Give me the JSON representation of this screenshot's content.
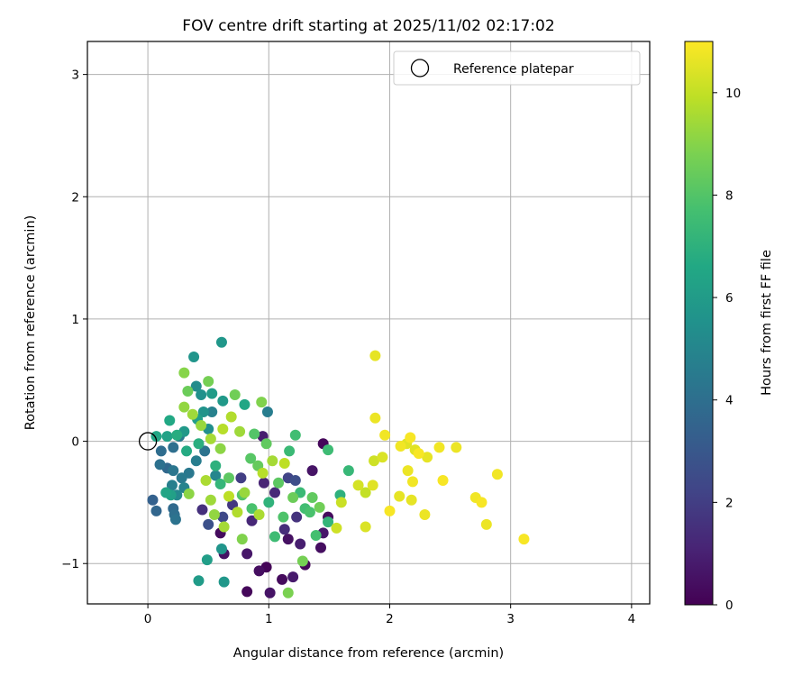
{
  "chart_data": {
    "type": "scatter",
    "title": "FOV centre drift starting at 2025/11/02 02:17:02",
    "xlabel": "Angular distance from reference (arcmin)",
    "ylabel": "Rotation from reference (arcmin)",
    "xlim": [
      -0.5,
      4.15
    ],
    "ylim": [
      -1.33,
      3.27
    ],
    "xticks": [
      0,
      1,
      2,
      3,
      4
    ],
    "yticks": [
      -1,
      0,
      1,
      2,
      3
    ],
    "xtick_labels": [
      "0",
      "1",
      "2",
      "3",
      "4"
    ],
    "ytick_labels": [
      "−1",
      "0",
      "1",
      "2",
      "3"
    ],
    "grid": true,
    "colormap": "viridis",
    "colorbar": {
      "label": "Hours from first FF file",
      "range": [
        0,
        11
      ],
      "ticks": [
        0,
        2,
        4,
        6,
        8,
        10
      ],
      "tick_labels": [
        "0",
        "2",
        "4",
        "6",
        "8",
        "10"
      ]
    },
    "legend": {
      "location": "top-right",
      "entries": [
        {
          "label": "Reference platepar",
          "marker": "open-circle"
        }
      ]
    },
    "reference_point": {
      "x": 0,
      "y": 0
    },
    "series": [
      {
        "name": "FOV centre",
        "points": [
          {
            "x": 0.6,
            "y": -0.75,
            "hours": 0.3
          },
          {
            "x": 0.63,
            "y": -0.92,
            "hours": 0.5
          },
          {
            "x": 0.82,
            "y": -0.92,
            "hours": 0.7
          },
          {
            "x": 0.82,
            "y": -1.23,
            "hours": 0.2
          },
          {
            "x": 0.92,
            "y": -1.06,
            "hours": 0.4
          },
          {
            "x": 0.98,
            "y": -1.03,
            "hours": 0.1
          },
          {
            "x": 1.01,
            "y": -1.24,
            "hours": 0.6
          },
          {
            "x": 1.11,
            "y": -1.13,
            "hours": 0.3
          },
          {
            "x": 1.2,
            "y": -1.11,
            "hours": 0.8
          },
          {
            "x": 1.3,
            "y": -1.01,
            "hours": 0.2
          },
          {
            "x": 1.16,
            "y": -0.8,
            "hours": 0.5
          },
          {
            "x": 1.26,
            "y": -0.84,
            "hours": 0.9
          },
          {
            "x": 1.43,
            "y": -0.87,
            "hours": 0.4
          },
          {
            "x": 1.45,
            "y": -0.75,
            "hours": 0.7
          },
          {
            "x": 1.49,
            "y": -0.62,
            "hours": 0.3
          },
          {
            "x": 1.36,
            "y": -0.24,
            "hours": 0.6
          },
          {
            "x": 1.45,
            "y": -0.02,
            "hours": 0.2
          },
          {
            "x": 0.95,
            "y": 0.04,
            "hours": 0.9
          },
          {
            "x": 0.96,
            "y": -0.34,
            "hours": 1.1
          },
          {
            "x": 1.05,
            "y": -0.42,
            "hours": 1.3
          },
          {
            "x": 0.86,
            "y": -0.65,
            "hours": 1.2
          },
          {
            "x": 1.23,
            "y": -0.62,
            "hours": 1.6
          },
          {
            "x": 1.13,
            "y": -0.72,
            "hours": 1.4
          },
          {
            "x": 0.45,
            "y": -0.56,
            "hours": 1.5
          },
          {
            "x": 0.7,
            "y": -0.52,
            "hours": 1.8
          },
          {
            "x": 0.77,
            "y": -0.3,
            "hours": 2.0
          },
          {
            "x": 1.16,
            "y": -0.3,
            "hours": 2.2
          },
          {
            "x": 0.62,
            "y": -0.62,
            "hours": 2.4
          },
          {
            "x": 0.5,
            "y": -0.68,
            "hours": 2.7
          },
          {
            "x": 1.22,
            "y": -0.32,
            "hours": 2.6
          },
          {
            "x": 0.04,
            "y": -0.48,
            "hours": 3.4
          },
          {
            "x": 0.07,
            "y": -0.57,
            "hours": 3.6
          },
          {
            "x": 0.21,
            "y": -0.55,
            "hours": 3.8
          },
          {
            "x": 0.22,
            "y": -0.6,
            "hours": 4.0
          },
          {
            "x": 0.23,
            "y": -0.64,
            "hours": 4.2
          },
          {
            "x": 0.11,
            "y": -0.08,
            "hours": 3.9
          },
          {
            "x": 0.1,
            "y": -0.19,
            "hours": 4.1
          },
          {
            "x": 0.16,
            "y": -0.22,
            "hours": 3.7
          },
          {
            "x": 0.21,
            "y": -0.24,
            "hours": 4.3
          },
          {
            "x": 0.28,
            "y": -0.3,
            "hours": 4.5
          },
          {
            "x": 0.34,
            "y": -0.26,
            "hours": 4.4
          },
          {
            "x": 0.4,
            "y": -0.16,
            "hours": 4.6
          },
          {
            "x": 0.47,
            "y": -0.08,
            "hours": 4.2
          },
          {
            "x": 0.53,
            "y": 0.24,
            "hours": 4.8
          },
          {
            "x": 0.21,
            "y": -0.05,
            "hours": 4.0
          },
          {
            "x": 0.26,
            "y": 0.04,
            "hours": 4.5
          },
          {
            "x": 0.2,
            "y": -0.36,
            "hours": 4.7
          },
          {
            "x": 0.3,
            "y": -0.38,
            "hours": 4.9
          },
          {
            "x": 0.24,
            "y": -0.44,
            "hours": 5.1
          },
          {
            "x": 0.99,
            "y": 0.24,
            "hours": 4.6
          },
          {
            "x": 0.56,
            "y": -0.28,
            "hours": 5.0
          },
          {
            "x": 0.4,
            "y": 0.45,
            "hours": 5.3
          },
          {
            "x": 0.44,
            "y": 0.38,
            "hours": 5.5
          },
          {
            "x": 0.46,
            "y": 0.24,
            "hours": 5.6
          },
          {
            "x": 0.5,
            "y": 0.1,
            "hours": 5.4
          },
          {
            "x": 0.38,
            "y": 0.69,
            "hours": 5.7
          },
          {
            "x": 0.61,
            "y": 0.81,
            "hours": 5.8
          },
          {
            "x": 0.62,
            "y": 0.33,
            "hours": 5.9
          },
          {
            "x": 0.53,
            "y": 0.39,
            "hours": 6.0
          },
          {
            "x": 0.41,
            "y": 0.18,
            "hours": 6.1
          },
          {
            "x": 0.3,
            "y": 0.08,
            "hours": 5.9
          },
          {
            "x": 0.42,
            "y": -1.14,
            "hours": 6.0
          },
          {
            "x": 0.49,
            "y": -0.97,
            "hours": 6.1
          },
          {
            "x": 0.63,
            "y": -1.15,
            "hours": 5.8
          },
          {
            "x": 0.61,
            "y": -0.88,
            "hours": 5.7
          },
          {
            "x": 0.16,
            "y": 0.04,
            "hours": 6.3
          },
          {
            "x": 0.07,
            "y": 0.04,
            "hours": 6.5
          },
          {
            "x": 0.19,
            "y": -0.44,
            "hours": 6.2
          },
          {
            "x": 0.15,
            "y": -0.42,
            "hours": 6.4
          },
          {
            "x": 0.18,
            "y": 0.17,
            "hours": 6.6
          },
          {
            "x": 0.24,
            "y": 0.05,
            "hours": 6.8
          },
          {
            "x": 0.32,
            "y": -0.08,
            "hours": 6.7
          },
          {
            "x": 0.42,
            "y": -0.02,
            "hours": 6.9
          },
          {
            "x": 0.56,
            "y": -0.2,
            "hours": 7.0
          },
          {
            "x": 0.6,
            "y": -0.35,
            "hours": 7.2
          },
          {
            "x": 0.8,
            "y": 0.3,
            "hours": 6.5
          },
          {
            "x": 1.0,
            "y": -0.5,
            "hours": 7.1
          },
          {
            "x": 1.17,
            "y": -0.08,
            "hours": 7.4
          },
          {
            "x": 1.22,
            "y": 0.05,
            "hours": 7.6
          },
          {
            "x": 1.66,
            "y": -0.24,
            "hours": 7.3
          },
          {
            "x": 1.49,
            "y": -0.07,
            "hours": 7.5
          },
          {
            "x": 1.59,
            "y": -0.44,
            "hours": 7.0
          },
          {
            "x": 1.49,
            "y": -0.66,
            "hours": 7.2
          },
          {
            "x": 1.39,
            "y": -0.77,
            "hours": 7.7
          },
          {
            "x": 1.34,
            "y": -0.58,
            "hours": 7.8
          },
          {
            "x": 1.26,
            "y": -0.42,
            "hours": 7.4
          },
          {
            "x": 1.3,
            "y": -0.55,
            "hours": 7.6
          },
          {
            "x": 1.12,
            "y": -0.62,
            "hours": 7.9
          },
          {
            "x": 1.05,
            "y": -0.78,
            "hours": 7.5
          },
          {
            "x": 0.86,
            "y": -0.55,
            "hours": 7.8
          },
          {
            "x": 0.78,
            "y": -0.44,
            "hours": 8.0
          },
          {
            "x": 0.67,
            "y": -0.3,
            "hours": 8.2
          },
          {
            "x": 0.85,
            "y": -0.14,
            "hours": 8.1
          },
          {
            "x": 0.98,
            "y": -0.02,
            "hours": 8.3
          },
          {
            "x": 0.88,
            "y": 0.06,
            "hours": 8.0
          },
          {
            "x": 0.91,
            "y": -0.2,
            "hours": 8.4
          },
          {
            "x": 1.08,
            "y": -0.34,
            "hours": 8.2
          },
          {
            "x": 1.2,
            "y": -0.46,
            "hours": 8.5
          },
          {
            "x": 1.36,
            "y": -0.46,
            "hours": 8.3
          },
          {
            "x": 1.42,
            "y": -0.54,
            "hours": 8.6
          },
          {
            "x": 1.28,
            "y": -0.98,
            "hours": 8.7
          },
          {
            "x": 1.16,
            "y": -1.24,
            "hours": 8.8
          },
          {
            "x": 0.72,
            "y": 0.38,
            "hours": 8.6
          },
          {
            "x": 0.5,
            "y": 0.49,
            "hours": 8.7
          },
          {
            "x": 0.94,
            "y": 0.32,
            "hours": 8.9
          },
          {
            "x": 0.33,
            "y": 0.41,
            "hours": 8.5
          },
          {
            "x": 0.3,
            "y": 0.56,
            "hours": 9.0
          },
          {
            "x": 0.78,
            "y": -0.8,
            "hours": 8.9
          },
          {
            "x": 0.3,
            "y": 0.28,
            "hours": 9.2
          },
          {
            "x": 0.37,
            "y": 0.22,
            "hours": 9.4
          },
          {
            "x": 0.44,
            "y": 0.13,
            "hours": 9.3
          },
          {
            "x": 0.52,
            "y": 0.02,
            "hours": 9.5
          },
          {
            "x": 0.6,
            "y": -0.06,
            "hours": 9.1
          },
          {
            "x": 0.48,
            "y": -0.32,
            "hours": 9.6
          },
          {
            "x": 0.52,
            "y": -0.48,
            "hours": 9.4
          },
          {
            "x": 0.55,
            "y": -0.6,
            "hours": 9.2
          },
          {
            "x": 0.63,
            "y": -0.7,
            "hours": 9.5
          },
          {
            "x": 0.74,
            "y": -0.58,
            "hours": 9.7
          },
          {
            "x": 0.8,
            "y": -0.42,
            "hours": 9.3
          },
          {
            "x": 0.92,
            "y": -0.6,
            "hours": 9.6
          },
          {
            "x": 0.95,
            "y": -0.26,
            "hours": 9.8
          },
          {
            "x": 1.03,
            "y": -0.16,
            "hours": 9.5
          },
          {
            "x": 1.13,
            "y": -0.18,
            "hours": 9.9
          },
          {
            "x": 0.69,
            "y": 0.2,
            "hours": 9.7
          },
          {
            "x": 0.76,
            "y": 0.08,
            "hours": 9.4
          },
          {
            "x": 0.62,
            "y": 0.1,
            "hours": 9.8
          },
          {
            "x": 0.34,
            "y": -0.43,
            "hours": 9.1
          },
          {
            "x": 0.67,
            "y": -0.45,
            "hours": 9.9
          },
          {
            "x": 1.56,
            "y": -0.71,
            "hours": 10.2
          },
          {
            "x": 1.6,
            "y": -0.5,
            "hours": 10.1
          },
          {
            "x": 1.74,
            "y": -0.36,
            "hours": 10.3
          },
          {
            "x": 1.8,
            "y": -0.42,
            "hours": 10.0
          },
          {
            "x": 1.8,
            "y": -0.7,
            "hours": 10.4
          },
          {
            "x": 1.86,
            "y": -0.36,
            "hours": 10.5
          },
          {
            "x": 1.87,
            "y": -0.16,
            "hours": 10.2
          },
          {
            "x": 1.88,
            "y": 0.7,
            "hours": 10.6
          },
          {
            "x": 1.88,
            "y": 0.19,
            "hours": 10.7
          },
          {
            "x": 1.94,
            "y": -0.13,
            "hours": 10.4
          },
          {
            "x": 1.96,
            "y": 0.05,
            "hours": 10.8
          },
          {
            "x": 2.0,
            "y": -0.57,
            "hours": 10.9
          },
          {
            "x": 2.08,
            "y": -0.45,
            "hours": 10.6
          },
          {
            "x": 2.09,
            "y": -0.04,
            "hours": 10.8
          },
          {
            "x": 2.14,
            "y": -0.02,
            "hours": 10.5
          },
          {
            "x": 2.15,
            "y": -0.24,
            "hours": 10.7
          },
          {
            "x": 2.17,
            "y": 0.03,
            "hours": 10.9
          },
          {
            "x": 2.18,
            "y": -0.48,
            "hours": 10.6
          },
          {
            "x": 2.19,
            "y": -0.33,
            "hours": 10.8
          },
          {
            "x": 2.21,
            "y": -0.07,
            "hours": 10.5
          },
          {
            "x": 2.24,
            "y": -0.1,
            "hours": 10.9
          },
          {
            "x": 2.29,
            "y": -0.6,
            "hours": 10.7
          },
          {
            "x": 2.31,
            "y": -0.13,
            "hours": 10.6
          },
          {
            "x": 2.41,
            "y": -0.05,
            "hours": 10.8
          },
          {
            "x": 2.44,
            "y": -0.32,
            "hours": 10.9
          },
          {
            "x": 2.55,
            "y": -0.05,
            "hours": 10.7
          },
          {
            "x": 2.71,
            "y": -0.46,
            "hours": 10.8
          },
          {
            "x": 2.76,
            "y": -0.5,
            "hours": 10.9
          },
          {
            "x": 2.8,
            "y": -0.68,
            "hours": 10.7
          },
          {
            "x": 2.89,
            "y": -0.27,
            "hours": 10.8
          },
          {
            "x": 3.11,
            "y": -0.8,
            "hours": 10.9
          }
        ]
      }
    ]
  }
}
